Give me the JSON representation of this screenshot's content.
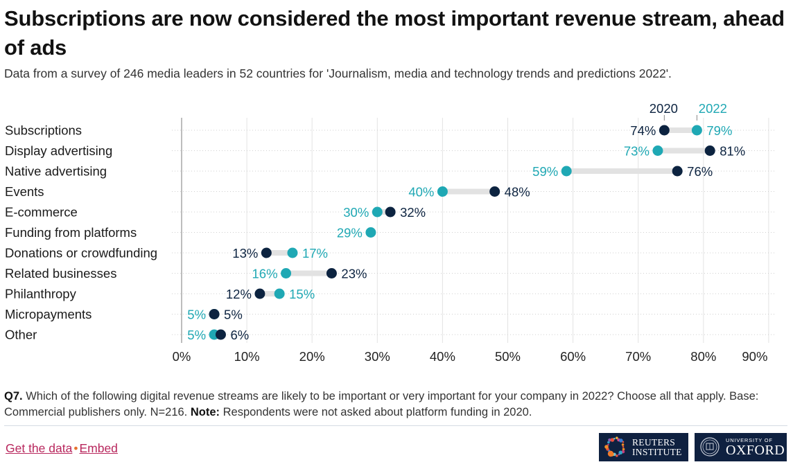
{
  "title": "Subscriptions are now considered the most important revenue stream, ahead of ads",
  "subtitle": "Data from a survey of 246 media leaders in 52 countries for 'Journalism, media and technology trends and predictions 2022'.",
  "colors": {
    "year_2020": "#0c2340",
    "year_2022": "#1fa8b4",
    "connector": "#e2e2e2",
    "link": "#b8275d"
  },
  "chart_data": {
    "type": "dumbbell",
    "title": "Subscriptions are now considered the most important revenue stream, ahead of ads",
    "xlabel": "",
    "ylabel": "",
    "xlim": [
      0,
      90
    ],
    "x_ticks": [
      "0%",
      "10%",
      "20%",
      "30%",
      "40%",
      "50%",
      "60%",
      "70%",
      "80%",
      "90%"
    ],
    "legend": [
      "2020",
      "2022"
    ],
    "legend_placement": "top-right",
    "grid": true,
    "categories": [
      "Subscriptions",
      "Display advertising",
      "Native advertising",
      "Events",
      "E-commerce",
      "Funding from platforms",
      "Donations or crowdfunding",
      "Related businesses",
      "Philanthropy",
      "Micropayments",
      "Other"
    ],
    "series": [
      {
        "name": "2020",
        "values": [
          74,
          81,
          76,
          48,
          32,
          null,
          13,
          23,
          12,
          5,
          6
        ]
      },
      {
        "name": "2022",
        "values": [
          79,
          73,
          59,
          40,
          30,
          29,
          17,
          16,
          15,
          5,
          5
        ]
      }
    ]
  },
  "footnote": {
    "q_label": "Q7.",
    "q_text": " Which of the following digital revenue streams are likely to be important or very important for your company in 2022? Choose all that apply. Base: Commercial publishers only. N=216. ",
    "note_label": "Note:",
    "note_text": " Respondents were not asked about platform funding in 2020."
  },
  "links": {
    "get_data": "Get the data",
    "separator": "•",
    "embed": "Embed"
  },
  "logos": {
    "reuters_line1": "REUTERS",
    "reuters_line2": "INSTITUTE",
    "oxford_line1": "UNIVERSITY OF",
    "oxford_line2": "OXFORD"
  }
}
